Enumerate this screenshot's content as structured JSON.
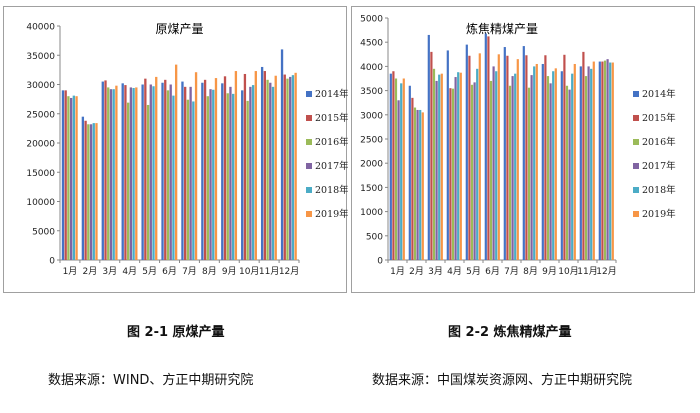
{
  "captions": {
    "left": "图 2-1    原煤产量",
    "right": "图 2-2    炼焦精煤产量"
  },
  "sources": {
    "left": "数据来源：WIND、方正中期研究院",
    "right": "数据来源：中国煤炭资源网、方正中期研究院"
  },
  "series_colors": [
    "#4472c4",
    "#c0504d",
    "#9bbb59",
    "#8064a2",
    "#4bacc6",
    "#f79646"
  ],
  "chart_data": [
    {
      "type": "bar",
      "title": "原煤产量",
      "categories": [
        "1月",
        "2月",
        "3月",
        "4月",
        "5月",
        "6月",
        "7月",
        "8月",
        "9月",
        "10月",
        "11月",
        "12月"
      ],
      "ylim": [
        0,
        40000
      ],
      "yticks": [
        0,
        5000,
        10000,
        15000,
        20000,
        25000,
        30000,
        35000,
        40000
      ],
      "grid": false,
      "legend": "right",
      "series": [
        {
          "name": "2014年",
          "values": [
            29000,
            24500,
            30500,
            30200,
            30000,
            30300,
            30500,
            30300,
            30200,
            29000,
            33000,
            36000
          ]
        },
        {
          "name": "2015年",
          "values": [
            29000,
            23800,
            30700,
            29900,
            31000,
            30800,
            29600,
            30800,
            31400,
            31800,
            32300,
            31700
          ]
        },
        {
          "name": "2016年",
          "values": [
            28000,
            23200,
            29500,
            26900,
            26500,
            29000,
            27400,
            28000,
            28500,
            27200,
            30800,
            31000
          ]
        },
        {
          "name": "2017年",
          "values": [
            27700,
            23200,
            29200,
            29500,
            30000,
            30000,
            29600,
            29200,
            29600,
            29600,
            30300,
            31300
          ]
        },
        {
          "name": "2018年",
          "values": [
            28100,
            23400,
            29200,
            29400,
            29700,
            28100,
            27100,
            29100,
            28400,
            29900,
            29600,
            31600
          ]
        },
        {
          "name": "2019年",
          "values": [
            28000,
            23400,
            29800,
            29500,
            31300,
            33400,
            32100,
            31100,
            32300,
            32300,
            31500,
            32000
          ]
        }
      ]
    },
    {
      "type": "bar",
      "title": "炼焦精煤产量",
      "categories": [
        "1月",
        "2月",
        "3月",
        "4月",
        "5月",
        "6月",
        "7月",
        "8月",
        "9月",
        "10月",
        "11月",
        "12月"
      ],
      "ylim": [
        0,
        5000
      ],
      "yticks": [
        0,
        500,
        1000,
        1500,
        2000,
        2500,
        3000,
        3500,
        4000,
        4500,
        5000
      ],
      "grid": false,
      "legend": "right",
      "series": [
        {
          "name": "2014年",
          "values": [
            3850,
            3600,
            4650,
            4330,
            4450,
            4680,
            4400,
            4420,
            4050,
            3900,
            4000,
            4100
          ]
        },
        {
          "name": "2015年",
          "values": [
            3900,
            3350,
            4300,
            3550,
            4220,
            4620,
            4220,
            4230,
            4230,
            4240,
            4300,
            4100
          ]
        },
        {
          "name": "2016年",
          "values": [
            3750,
            3150,
            3950,
            3540,
            3620,
            3700,
            3600,
            3560,
            3800,
            3600,
            3800,
            4120
          ]
        },
        {
          "name": "2017年",
          "values": [
            3300,
            3100,
            3700,
            3780,
            3670,
            4000,
            3800,
            3820,
            3650,
            3520,
            4000,
            4150
          ]
        },
        {
          "name": "2018年",
          "values": [
            3650,
            3100,
            3830,
            3880,
            3950,
            3900,
            3850,
            4000,
            3900,
            3850,
            3950,
            4080
          ]
        },
        {
          "name": "2019年",
          "values": [
            3750,
            3050,
            3850,
            3870,
            4270,
            4250,
            4150,
            4050,
            3960,
            4050,
            4100,
            4080
          ]
        }
      ]
    }
  ]
}
